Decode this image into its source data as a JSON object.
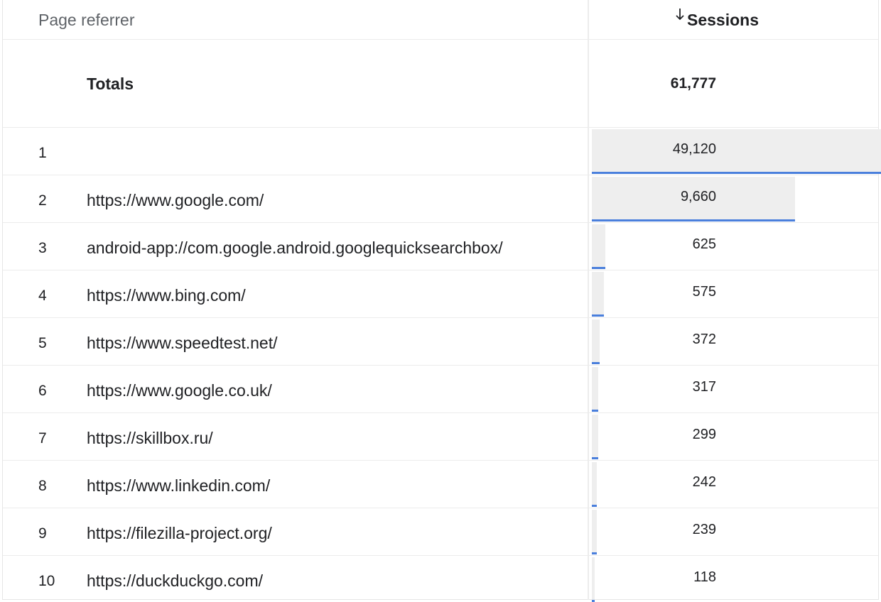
{
  "table": {
    "header": {
      "dimension": "Page referrer",
      "metric": "Sessions",
      "sort_icon": "arrow-down-icon"
    },
    "totals": {
      "label": "Totals",
      "value": "61,777"
    },
    "rows": [
      {
        "rank": "1",
        "referrer": "",
        "sessions": "49,120",
        "share": 1.0
      },
      {
        "rank": "2",
        "referrer": "https://www.google.com/",
        "sessions": "9,660",
        "share": 0.7
      },
      {
        "rank": "3",
        "referrer": "android-app://com.google.android.googlequicksearchbox/",
        "sessions": "625",
        "share": 0.046
      },
      {
        "rank": "4",
        "referrer": "https://www.bing.com/",
        "sessions": "575",
        "share": 0.042
      },
      {
        "rank": "5",
        "referrer": "https://www.speedtest.net/",
        "sessions": "372",
        "share": 0.027
      },
      {
        "rank": "6",
        "referrer": "https://www.google.co.uk/",
        "sessions": "317",
        "share": 0.023
      },
      {
        "rank": "7",
        "referrer": "https://skillbox.ru/",
        "sessions": "299",
        "share": 0.022
      },
      {
        "rank": "8",
        "referrer": "https://www.linkedin.com/",
        "sessions": "242",
        "share": 0.018
      },
      {
        "rank": "9",
        "referrer": "https://filezilla-project.org/",
        "sessions": "239",
        "share": 0.017
      },
      {
        "rank": "10",
        "referrer": "https://duckduckgo.com/",
        "sessions": "118",
        "share": 0.009
      }
    ]
  },
  "colors": {
    "bar_fill": "#eeeeee",
    "bar_line": "#4a7fdc"
  }
}
